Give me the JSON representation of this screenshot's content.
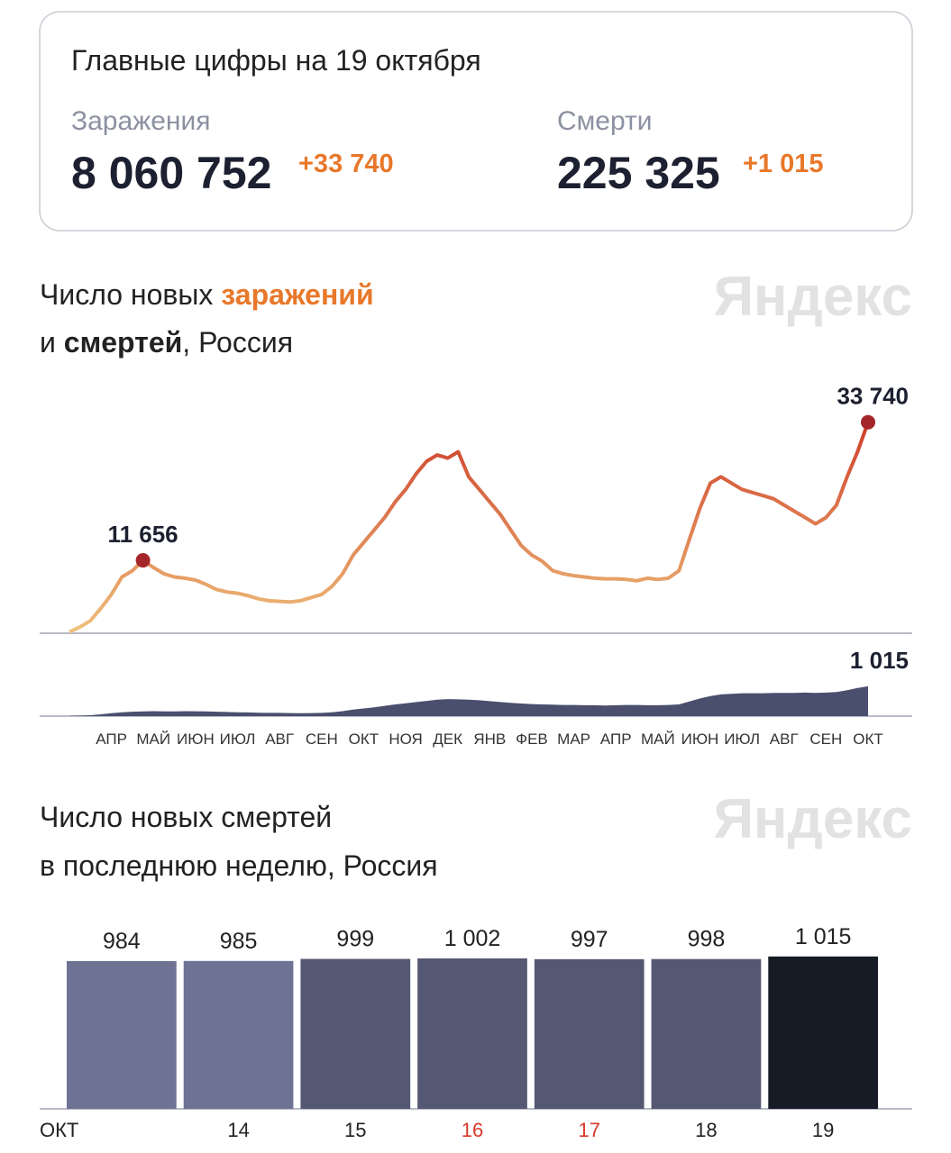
{
  "summary": {
    "title": "Главные цифры на 19 октября",
    "cases": {
      "label": "Заражения",
      "total": "8 060 752",
      "delta": "+33 740"
    },
    "deaths": {
      "label": "Смерти",
      "total": "225 325",
      "delta": "+1 015"
    }
  },
  "chart_data": [
    {
      "type": "line",
      "title_lines": [
        [
          "Число новых ",
          "заражений"
        ],
        [
          "и ",
          "смертей",
          ", Россия"
        ]
      ],
      "watermark": "Яндекс",
      "categories": [
        null,
        null,
        "АПР",
        null,
        null,
        null,
        "МАЙ",
        null,
        null,
        null,
        "ИЮН",
        null,
        null,
        null,
        "ИЮЛ",
        null,
        null,
        null,
        "АВГ",
        null,
        null,
        null,
        "СЕН",
        null,
        null,
        null,
        "ОКТ",
        null,
        null,
        null,
        "НОЯ",
        null,
        null,
        null,
        "ДЕК",
        null,
        null,
        null,
        "ЯНВ",
        null,
        null,
        null,
        "ФЕВ",
        null,
        null,
        null,
        "МАР",
        null,
        null,
        null,
        "АПР",
        null,
        null,
        null,
        "МАЙ",
        null,
        null,
        null,
        "ИЮН",
        null,
        null,
        null,
        "ИЮЛ",
        null,
        null,
        null,
        "АВГ",
        null,
        null,
        null,
        "СЕН",
        null,
        null,
        null,
        "ОКТ",
        null,
        null
      ],
      "ylim": [
        0,
        36000
      ],
      "y2lim": [
        0,
        2700
      ],
      "series": [
        {
          "type": "line",
          "color": [
            "#efc27c",
            "#cc3323"
          ],
          "values": [
            200,
            1000,
            2000,
            4000,
            6200,
            9000,
            10000,
            11656,
            10500,
            9500,
            9000,
            8800,
            8500,
            7800,
            7000,
            6600,
            6400,
            6000,
            5500,
            5200,
            5100,
            5000,
            5200,
            5700,
            6200,
            7500,
            9500,
            12500,
            14500,
            16500,
            18500,
            21000,
            23000,
            25500,
            27500,
            28500,
            28000,
            29000,
            25000,
            23000,
            21000,
            19000,
            16500,
            14000,
            12500,
            11500,
            10000,
            9500,
            9200,
            9000,
            8800,
            8700,
            8700,
            8600,
            8400,
            8800,
            8600,
            8800,
            10000,
            15000,
            20000,
            24000,
            25000,
            24000,
            23000,
            22500,
            22000,
            21500,
            20500,
            19500,
            18500,
            17500,
            18500,
            20500,
            25000,
            29000,
            33740
          ],
          "value_labels": [
            null,
            null,
            null,
            null,
            null,
            null,
            null,
            "11 656",
            null,
            null,
            null,
            null,
            null,
            null,
            null,
            null,
            null,
            null,
            null,
            null,
            null,
            null,
            null,
            null,
            null,
            null,
            null,
            null,
            null,
            null,
            null,
            null,
            null,
            null,
            null,
            null,
            null,
            null,
            null,
            null,
            null,
            null,
            null,
            null,
            null,
            null,
            null,
            null,
            null,
            null,
            null,
            null,
            null,
            null,
            null,
            null,
            null,
            null,
            null,
            null,
            null,
            null,
            null,
            null,
            null,
            null,
            null,
            null,
            null,
            null,
            null,
            null,
            null,
            null,
            null,
            null,
            "33 740"
          ]
        },
        {
          "type": "area",
          "axis": "y2",
          "color": "#4a4f6e",
          "values": [
            5,
            15,
            30,
            60,
            100,
            130,
            150,
            160,
            170,
            160,
            160,
            170,
            165,
            160,
            150,
            140,
            130,
            125,
            115,
            110,
            110,
            105,
            100,
            105,
            110,
            130,
            170,
            220,
            260,
            300,
            350,
            400,
            440,
            480,
            520,
            560,
            580,
            570,
            560,
            540,
            510,
            480,
            450,
            430,
            410,
            400,
            390,
            380,
            380,
            370,
            370,
            360,
            370,
            380,
            380,
            370,
            370,
            380,
            400,
            500,
            600,
            680,
            740,
            760,
            780,
            780,
            780,
            790,
            790,
            790,
            800,
            790,
            800,
            820,
            880,
            960,
            1015
          ],
          "value_labels": [
            null,
            null,
            null,
            null,
            null,
            null,
            null,
            null,
            null,
            null,
            null,
            null,
            null,
            null,
            null,
            null,
            null,
            null,
            null,
            null,
            null,
            null,
            null,
            null,
            null,
            null,
            null,
            null,
            null,
            null,
            null,
            null,
            null,
            null,
            null,
            null,
            null,
            null,
            null,
            null,
            null,
            null,
            null,
            null,
            null,
            null,
            null,
            null,
            null,
            null,
            null,
            null,
            null,
            null,
            null,
            null,
            null,
            null,
            null,
            null,
            null,
            null,
            null,
            null,
            null,
            null,
            null,
            null,
            null,
            null,
            null,
            null,
            null,
            null,
            null,
            null,
            "1 015"
          ]
        }
      ]
    },
    {
      "type": "bar",
      "title_lines": [
        [
          "Число новых смертей"
        ],
        [
          "в последнюю неделю, Россия"
        ]
      ],
      "watermark": "Яндекс",
      "month_label": "ОКТ",
      "categories": [
        null,
        "14",
        "15",
        "16",
        "17",
        "18",
        "19"
      ],
      "label_colors": [
        "#222222",
        "#222222",
        "#222222",
        "#d9392b",
        "#d9392b",
        "#222222",
        "#222222"
      ],
      "values": [
        984,
        985,
        999,
        1002,
        997,
        998,
        1015
      ],
      "value_labels": [
        "984",
        "985",
        "999",
        "1 002",
        "997",
        "998",
        "1 015"
      ],
      "colors": [
        "#6e7394",
        "#6e7394",
        "#555873",
        "#555873",
        "#555873",
        "#555873",
        "#171b26"
      ],
      "ylim": [
        0,
        1200
      ]
    }
  ]
}
